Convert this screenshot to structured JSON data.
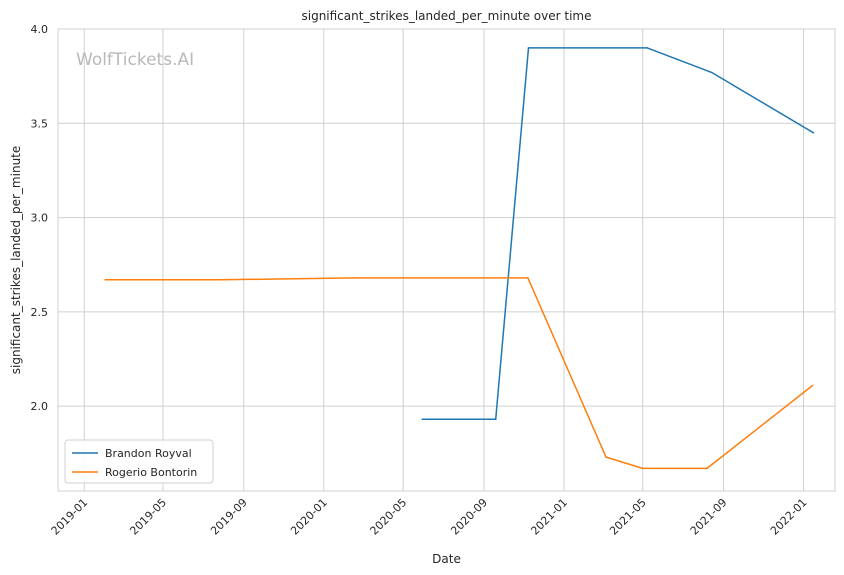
{
  "chart_data": {
    "type": "line",
    "title": "significant_strikes_landed_per_minute over time",
    "xlabel": "Date",
    "ylabel": "significant_strikes_landed_per_minute",
    "watermark": "WolfTickets.AI",
    "x_ticks": [
      "2019-01",
      "2019-05",
      "2019-09",
      "2020-01",
      "2020-05",
      "2020-09",
      "2021-01",
      "2021-05",
      "2021-09",
      "2022-01"
    ],
    "y_ticks": [
      "2.0",
      "2.5",
      "3.0",
      "3.5",
      "4.0"
    ],
    "xlim": [
      "2018-11-22",
      "2022-02-18"
    ],
    "ylim": [
      1.55,
      4.0
    ],
    "grid": true,
    "legend_position": "lower-left",
    "series": [
      {
        "name": "Brandon Royval",
        "color": "#1f77b4",
        "points": [
          {
            "x": "2020-05-30",
            "y": 1.93
          },
          {
            "x": "2020-09-19",
            "y": 1.93
          },
          {
            "x": "2020-11-08",
            "y": 3.9
          },
          {
            "x": "2021-05-08",
            "y": 3.9
          },
          {
            "x": "2021-08-14",
            "y": 3.77
          },
          {
            "x": "2022-01-16",
            "y": 3.45
          }
        ]
      },
      {
        "name": "Rogerio Bontorin",
        "color": "#ff7f0e",
        "points": [
          {
            "x": "2019-02-02",
            "y": 2.67
          },
          {
            "x": "2019-07-27",
            "y": 2.67
          },
          {
            "x": "2020-02-15",
            "y": 2.68
          },
          {
            "x": "2020-11-07",
            "y": 2.68
          },
          {
            "x": "2021-03-06",
            "y": 1.73
          },
          {
            "x": "2021-05-01",
            "y": 1.67
          },
          {
            "x": "2021-08-07",
            "y": 1.67
          },
          {
            "x": "2022-01-15",
            "y": 2.11
          }
        ]
      }
    ]
  }
}
